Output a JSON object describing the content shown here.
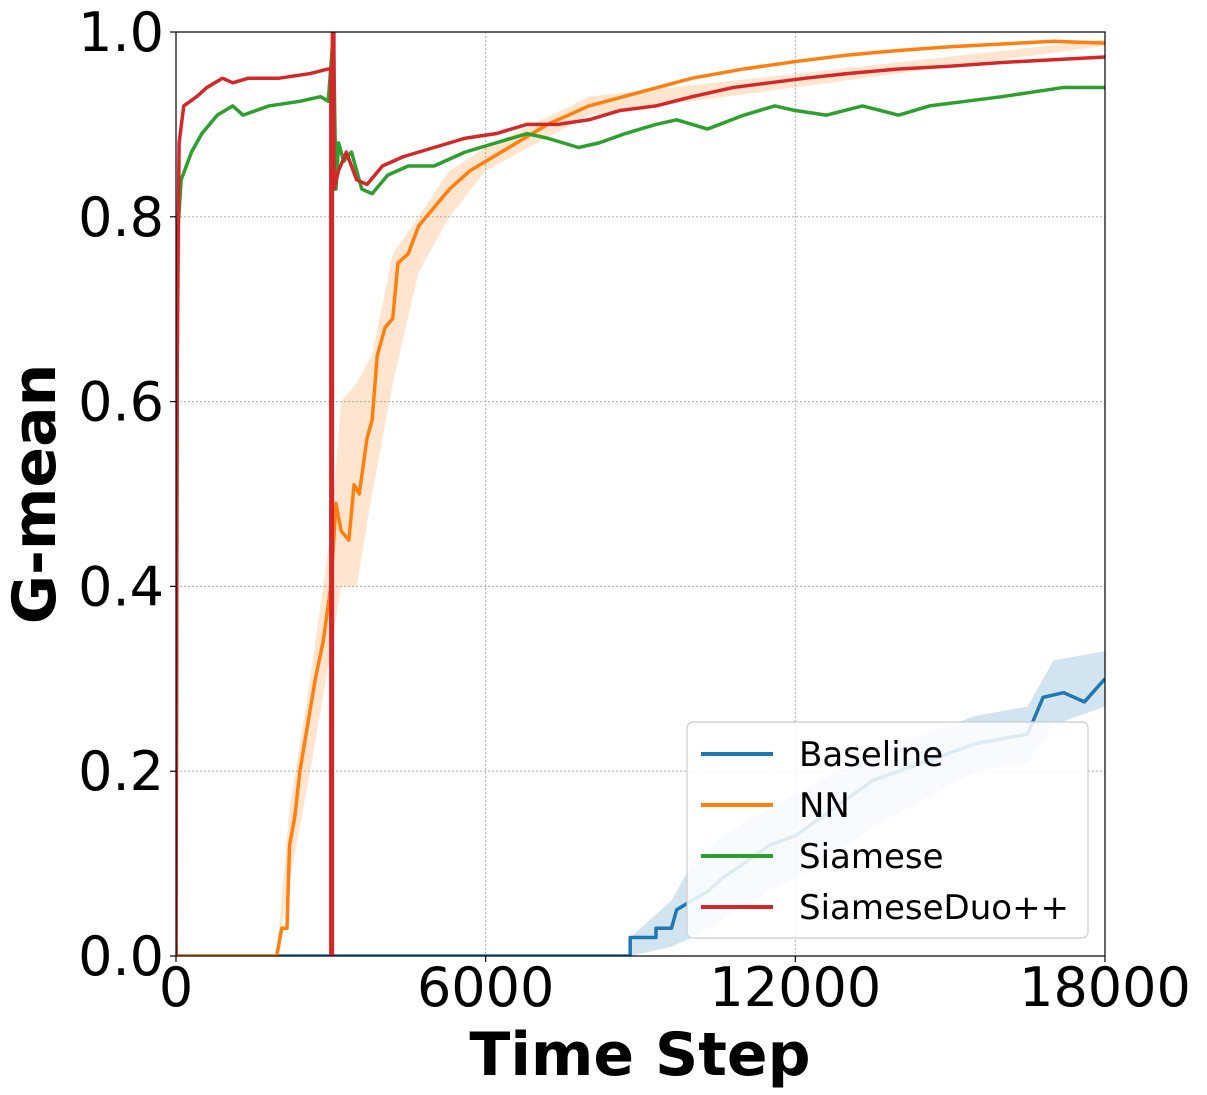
{
  "chart_data": {
    "type": "line",
    "xlabel": "Time Step",
    "ylabel": "G-mean",
    "xlim": [
      0,
      18000
    ],
    "ylim": [
      0.0,
      1.0
    ],
    "xticks": [
      0,
      6000,
      12000,
      18000
    ],
    "xtick_labels": [
      "0",
      "6000",
      "12000",
      "18000"
    ],
    "yticks": [
      0.0,
      0.2,
      0.4,
      0.6,
      0.8,
      1.0
    ],
    "ytick_labels": [
      "0.0",
      "0.2",
      "0.4",
      "0.6",
      "0.8",
      "1.0"
    ],
    "grid": true,
    "legend_position": "bottom-right",
    "series": [
      {
        "name": "Baseline",
        "color": "#1f77b4",
        "points": [
          [
            0,
            0
          ],
          [
            8800,
            0
          ],
          [
            8800,
            0.02
          ],
          [
            9300,
            0.02
          ],
          [
            9300,
            0.03
          ],
          [
            9600,
            0.03
          ],
          [
            9700,
            0.05
          ],
          [
            10000,
            0.06
          ],
          [
            10300,
            0.07
          ],
          [
            10600,
            0.085
          ],
          [
            11000,
            0.1
          ],
          [
            11500,
            0.12
          ],
          [
            12000,
            0.13
          ],
          [
            12500,
            0.15
          ],
          [
            13000,
            0.17
          ],
          [
            13500,
            0.19
          ],
          [
            14000,
            0.2
          ],
          [
            14500,
            0.21
          ],
          [
            15000,
            0.22
          ],
          [
            15500,
            0.23
          ],
          [
            16000,
            0.235
          ],
          [
            16500,
            0.24
          ],
          [
            16800,
            0.28
          ],
          [
            17200,
            0.285
          ],
          [
            17600,
            0.275
          ],
          [
            18000,
            0.3
          ]
        ],
        "band": [
          [
            8800,
            0,
            0.02
          ],
          [
            9600,
            0.01,
            0.06
          ],
          [
            10000,
            0.02,
            0.1
          ],
          [
            10600,
            0.04,
            0.13
          ],
          [
            11500,
            0.07,
            0.16
          ],
          [
            12500,
            0.1,
            0.19
          ],
          [
            13500,
            0.14,
            0.22
          ],
          [
            14500,
            0.17,
            0.24
          ],
          [
            15500,
            0.2,
            0.26
          ],
          [
            16500,
            0.21,
            0.27
          ],
          [
            17000,
            0.25,
            0.32
          ],
          [
            18000,
            0.27,
            0.33
          ]
        ]
      },
      {
        "name": "NN",
        "color": "#ff7f0e",
        "points": [
          [
            0,
            0
          ],
          [
            1950,
            0
          ],
          [
            2050,
            0.03
          ],
          [
            2150,
            0.03
          ],
          [
            2200,
            0.12
          ],
          [
            2300,
            0.15
          ],
          [
            2400,
            0.2
          ],
          [
            2550,
            0.25
          ],
          [
            2700,
            0.3
          ],
          [
            2850,
            0.34
          ],
          [
            3000,
            0.4
          ],
          [
            3100,
            0.49
          ],
          [
            3200,
            0.46
          ],
          [
            3350,
            0.45
          ],
          [
            3450,
            0.51
          ],
          [
            3550,
            0.5
          ],
          [
            3700,
            0.56
          ],
          [
            3800,
            0.58
          ],
          [
            3900,
            0.65
          ],
          [
            4050,
            0.68
          ],
          [
            4200,
            0.69
          ],
          [
            4300,
            0.75
          ],
          [
            4500,
            0.76
          ],
          [
            4700,
            0.79
          ],
          [
            5000,
            0.81
          ],
          [
            5300,
            0.83
          ],
          [
            5700,
            0.85
          ],
          [
            6000,
            0.86
          ],
          [
            6600,
            0.88
          ],
          [
            7200,
            0.9
          ],
          [
            8000,
            0.92
          ],
          [
            9000,
            0.935
          ],
          [
            10000,
            0.95
          ],
          [
            11000,
            0.96
          ],
          [
            12000,
            0.968
          ],
          [
            13000,
            0.975
          ],
          [
            14000,
            0.98
          ],
          [
            15000,
            0.984
          ],
          [
            16000,
            0.987
          ],
          [
            17000,
            0.99
          ],
          [
            18000,
            0.988
          ]
        ],
        "band": [
          [
            1950,
            0,
            0
          ],
          [
            2200,
            0.08,
            0.16
          ],
          [
            2600,
            0.2,
            0.3
          ],
          [
            3000,
            0.33,
            0.46
          ],
          [
            3200,
            0.4,
            0.6
          ],
          [
            3500,
            0.4,
            0.62
          ],
          [
            3800,
            0.5,
            0.65
          ],
          [
            4200,
            0.62,
            0.76
          ],
          [
            4700,
            0.74,
            0.8
          ],
          [
            5300,
            0.8,
            0.85
          ],
          [
            6000,
            0.85,
            0.875
          ],
          [
            8000,
            0.91,
            0.93
          ],
          [
            18000,
            0.985,
            0.992
          ]
        ]
      },
      {
        "name": "Siamese",
        "color": "#2ca02c",
        "points": [
          [
            0,
            0
          ],
          [
            30,
            0.78
          ],
          [
            100,
            0.84
          ],
          [
            300,
            0.87
          ],
          [
            500,
            0.89
          ],
          [
            800,
            0.91
          ],
          [
            1100,
            0.92
          ],
          [
            1300,
            0.91
          ],
          [
            1800,
            0.92
          ],
          [
            2400,
            0.925
          ],
          [
            2800,
            0.93
          ],
          [
            2950,
            0.925
          ],
          [
            3050,
            1.0
          ],
          [
            3100,
            0.83
          ],
          [
            3150,
            0.88
          ],
          [
            3250,
            0.86
          ],
          [
            3400,
            0.87
          ],
          [
            3600,
            0.83
          ],
          [
            3800,
            0.825
          ],
          [
            4100,
            0.845
          ],
          [
            4500,
            0.855
          ],
          [
            5000,
            0.855
          ],
          [
            5600,
            0.87
          ],
          [
            6200,
            0.88
          ],
          [
            6800,
            0.89
          ],
          [
            7200,
            0.885
          ],
          [
            7800,
            0.875
          ],
          [
            8200,
            0.88
          ],
          [
            8700,
            0.89
          ],
          [
            9300,
            0.9
          ],
          [
            9700,
            0.905
          ],
          [
            10300,
            0.895
          ],
          [
            11000,
            0.91
          ],
          [
            11600,
            0.92
          ],
          [
            12000,
            0.915
          ],
          [
            12600,
            0.91
          ],
          [
            13300,
            0.92
          ],
          [
            14000,
            0.91
          ],
          [
            14600,
            0.92
          ],
          [
            15300,
            0.925
          ],
          [
            16000,
            0.93
          ],
          [
            16600,
            0.935
          ],
          [
            17200,
            0.94
          ],
          [
            18000,
            0.94
          ]
        ]
      },
      {
        "name": "SiameseDuo++",
        "color": "#d62728",
        "points": [
          [
            0,
            0
          ],
          [
            20,
            0.62
          ],
          [
            60,
            0.88
          ],
          [
            150,
            0.92
          ],
          [
            400,
            0.93
          ],
          [
            600,
            0.94
          ],
          [
            900,
            0.95
          ],
          [
            1100,
            0.945
          ],
          [
            1400,
            0.95
          ],
          [
            2000,
            0.95
          ],
          [
            2600,
            0.955
          ],
          [
            2950,
            0.96
          ],
          [
            3000,
            0.96
          ],
          [
            3000,
            0
          ],
          [
            3030,
            0
          ],
          [
            3030,
            1.0
          ],
          [
            3060,
            1.0
          ],
          [
            3060,
            0.83
          ],
          [
            3150,
            0.85
          ],
          [
            3300,
            0.87
          ],
          [
            3500,
            0.84
          ],
          [
            3700,
            0.835
          ],
          [
            4000,
            0.855
          ],
          [
            4400,
            0.865
          ],
          [
            5000,
            0.875
          ],
          [
            5600,
            0.885
          ],
          [
            6200,
            0.89
          ],
          [
            6800,
            0.9
          ],
          [
            7400,
            0.9
          ],
          [
            8000,
            0.905
          ],
          [
            8600,
            0.915
          ],
          [
            9300,
            0.92
          ],
          [
            10000,
            0.93
          ],
          [
            10800,
            0.94
          ],
          [
            11500,
            0.945
          ],
          [
            12200,
            0.95
          ],
          [
            13000,
            0.955
          ],
          [
            14000,
            0.96
          ],
          [
            15000,
            0.963
          ],
          [
            16000,
            0.967
          ],
          [
            17000,
            0.97
          ],
          [
            18000,
            0.973
          ]
        ]
      }
    ]
  }
}
